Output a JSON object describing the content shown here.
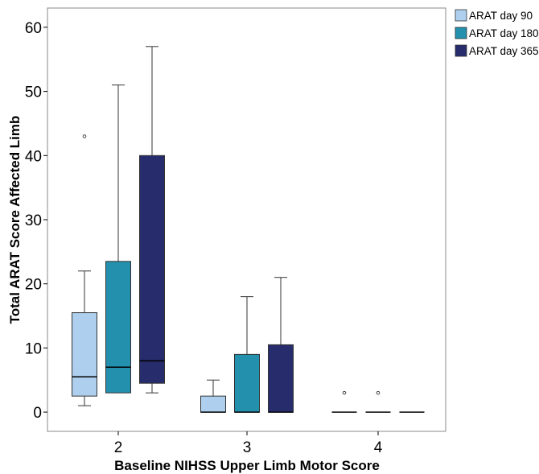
{
  "chart_data": {
    "type": "boxplot",
    "xlabel": "Baseline NIHSS Upper Limb Motor Score",
    "ylabel": "Total ARAT Score Affected Limb",
    "ylim": [
      -3,
      63
    ],
    "yticks": [
      0,
      10,
      20,
      30,
      40,
      50,
      60
    ],
    "categories": [
      "2",
      "3",
      "4"
    ],
    "legend_position": "outside-top-right",
    "grid": false,
    "series": [
      {
        "name": "ARAT day 90",
        "color": "#aed0ee",
        "boxes": [
          {
            "category": "2",
            "min": 1,
            "q1": 2.5,
            "median": 5.5,
            "q3": 15.5,
            "max": 22,
            "outliers": [
              43
            ]
          },
          {
            "category": "3",
            "min": 0,
            "q1": 0,
            "median": 0,
            "q3": 2.5,
            "max": 5,
            "outliers": []
          },
          {
            "category": "4",
            "min": 0,
            "q1": 0,
            "median": 0,
            "q3": 0,
            "max": 0,
            "outliers": [
              3
            ]
          }
        ]
      },
      {
        "name": "ARAT day 180",
        "color": "#2390ae",
        "boxes": [
          {
            "category": "2",
            "min": 3,
            "q1": 3,
            "median": 7,
            "q3": 23.5,
            "max": 51,
            "outliers": []
          },
          {
            "category": "3",
            "min": 0,
            "q1": 0,
            "median": 0,
            "q3": 9,
            "max": 18,
            "outliers": []
          },
          {
            "category": "4",
            "min": 0,
            "q1": 0,
            "median": 0,
            "q3": 0,
            "max": 0,
            "outliers": [
              3
            ]
          }
        ]
      },
      {
        "name": "ARAT day 365",
        "color": "#262c6c",
        "boxes": [
          {
            "category": "2",
            "min": 3,
            "q1": 4.5,
            "median": 8,
            "q3": 40,
            "max": 57,
            "outliers": []
          },
          {
            "category": "3",
            "min": 0,
            "q1": 0,
            "median": 0,
            "q3": 10.5,
            "max": 21,
            "outliers": []
          },
          {
            "category": "4",
            "min": 0,
            "q1": 0,
            "median": 0,
            "q3": 0,
            "max": 0,
            "outliers": []
          }
        ]
      }
    ]
  }
}
